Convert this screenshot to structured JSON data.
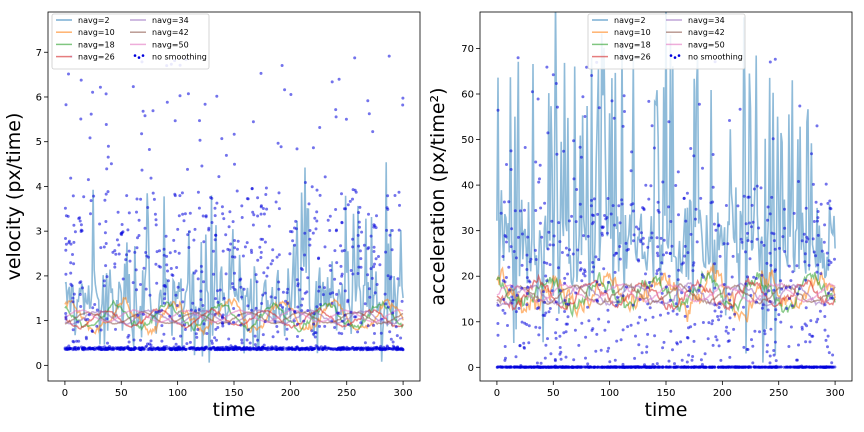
{
  "chart_data": [
    {
      "type": "line",
      "xlabel": "time",
      "ylabel": "velocity (px/time)",
      "xlim": [
        -15,
        315
      ],
      "ylim": [
        -0.35,
        7.9
      ],
      "xticks": [
        0,
        50,
        100,
        150,
        200,
        250,
        300
      ],
      "yticks": [
        0,
        1,
        2,
        3,
        4,
        5,
        6,
        7
      ],
      "legend_position": "top-left",
      "legend_columns": 2,
      "series": [
        {
          "name": "navg=2",
          "color": "#1f77b4",
          "pattern": "noisy",
          "base": 1.5,
          "amp": 1.3,
          "spike_rate": 0.16,
          "spike_height": 1.6
        },
        {
          "name": "navg=10",
          "color": "#ff7f0e",
          "pattern": "wave",
          "base": 1.08,
          "amp": 0.3,
          "noise": 0.22
        },
        {
          "name": "navg=18",
          "color": "#2ca02c",
          "pattern": "wave",
          "base": 1.1,
          "amp": 0.25,
          "noise": 0.14
        },
        {
          "name": "navg=26",
          "color": "#d62728",
          "pattern": "wave",
          "base": 1.05,
          "amp": 0.18,
          "noise": 0.08
        },
        {
          "name": "navg=34",
          "color": "#9467bd",
          "pattern": "wave",
          "base": 1.08,
          "amp": 0.14,
          "noise": 0.05
        },
        {
          "name": "navg=42",
          "color": "#8c564b",
          "pattern": "wave",
          "base": 1.06,
          "amp": 0.12,
          "noise": 0.04
        },
        {
          "name": "navg=50",
          "color": "#e377c2",
          "pattern": "wave",
          "base": 1.1,
          "amp": 0.13,
          "noise": 0.03
        }
      ],
      "scatter": {
        "name": "no smoothing",
        "color": "#0000dd",
        "x_range": [
          0,
          300
        ],
        "cluster_value": 0.35,
        "spread_max": 6.6
      }
    },
    {
      "type": "line",
      "xlabel": "time",
      "ylabel": "acceleration (px/time²)",
      "xlim": [
        -15,
        315
      ],
      "ylim": [
        -3,
        78
      ],
      "xticks": [
        0,
        50,
        100,
        150,
        200,
        250,
        300
      ],
      "yticks": [
        0,
        10,
        20,
        30,
        40,
        50,
        60,
        70
      ],
      "legend_position": "top-center",
      "legend_columns": 2,
      "series": [
        {
          "name": "navg=2",
          "color": "#1f77b4",
          "pattern": "noisy",
          "base": 28,
          "amp": 20,
          "spike_rate": 0.2,
          "spike_height": 30
        },
        {
          "name": "navg=10",
          "color": "#ff7f0e",
          "pattern": "wave",
          "base": 16,
          "amp": 3.5,
          "noise": 5
        },
        {
          "name": "navg=18",
          "color": "#2ca02c",
          "pattern": "wave",
          "base": 16.5,
          "amp": 3,
          "noise": 3.2
        },
        {
          "name": "navg=26",
          "color": "#d62728",
          "pattern": "wave",
          "base": 16,
          "amp": 2.5,
          "noise": 2
        },
        {
          "name": "navg=34",
          "color": "#9467bd",
          "pattern": "wave",
          "base": 16,
          "amp": 2,
          "noise": 1.2
        },
        {
          "name": "navg=42",
          "color": "#8c564b",
          "pattern": "wave",
          "base": 16,
          "amp": 1.8,
          "noise": 1
        },
        {
          "name": "navg=50",
          "color": "#e377c2",
          "pattern": "wave",
          "base": 16.3,
          "amp": 1.8,
          "noise": 0.8
        }
      ],
      "scatter": {
        "name": "no smoothing",
        "color": "#0000dd",
        "x_range": [
          0,
          300
        ],
        "cluster_value": 0,
        "spread_max": 68
      }
    }
  ]
}
